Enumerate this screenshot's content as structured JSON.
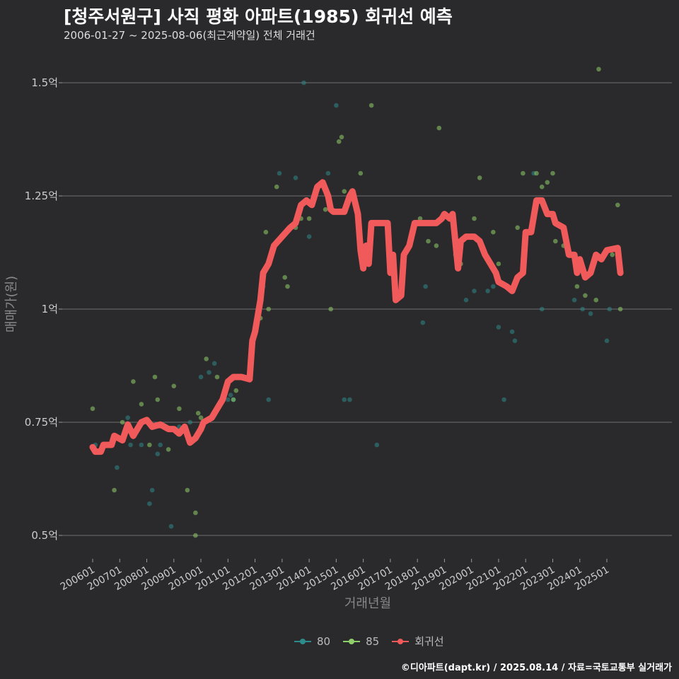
{
  "chart_data": {
    "type": "scatter+line",
    "title": "[청주서원구] 사직 평화 아파트(1985) 회귀선 예측",
    "subtitle": "2006-01-27 ~ 2025-08-06(최근계약일) 전체 거래건",
    "xlabel": "거래년월",
    "ylabel": "매매가(원)",
    "ylim": [
      0.45,
      1.58
    ],
    "y_ticks": [
      {
        "value": 0.5,
        "label": "0.5억"
      },
      {
        "value": 0.75,
        "label": "0.75억"
      },
      {
        "value": 1.0,
        "label": "1억"
      },
      {
        "value": 1.25,
        "label": "1.25억"
      },
      {
        "value": 1.5,
        "label": "1.5억"
      }
    ],
    "x_ticks": [
      "200601",
      "200701",
      "200801",
      "200901",
      "201001",
      "201101",
      "201201",
      "201301",
      "201401",
      "201501",
      "201601",
      "201701",
      "201801",
      "201901",
      "202001",
      "202101",
      "202201",
      "202301",
      "202401",
      "202501"
    ],
    "xlim": [
      2005.75,
      2025.95
    ],
    "legend": [
      "80",
      "85",
      "회귀선"
    ],
    "colors": {
      "s80": "#2e8b8b",
      "s85": "#8fcf6a",
      "regression": "#f05a5a",
      "grid": "#707070",
      "background": "#2a292b"
    },
    "series": [
      {
        "name": "80",
        "points": [
          [
            2006.1,
            0.7
          ],
          [
            2006.9,
            0.65
          ],
          [
            2007.3,
            0.76
          ],
          [
            2007.4,
            0.7
          ],
          [
            2007.8,
            0.7
          ],
          [
            2008.1,
            0.57
          ],
          [
            2008.2,
            0.6
          ],
          [
            2008.4,
            0.68
          ],
          [
            2008.5,
            0.7
          ],
          [
            2008.9,
            0.52
          ],
          [
            2009.2,
            0.74
          ],
          [
            2009.6,
            0.75
          ],
          [
            2010.0,
            0.85
          ],
          [
            2010.3,
            0.86
          ],
          [
            2010.5,
            0.88
          ],
          [
            2011.0,
            0.8
          ],
          [
            2011.1,
            0.81
          ],
          [
            2011.2,
            0.8
          ],
          [
            2012.3,
            1.05
          ],
          [
            2012.5,
            0.8
          ],
          [
            2012.9,
            1.3
          ],
          [
            2013.5,
            1.29
          ],
          [
            2013.8,
            1.5
          ],
          [
            2014.0,
            1.16
          ],
          [
            2014.7,
            1.3
          ],
          [
            2015.0,
            1.45
          ],
          [
            2015.3,
            0.8
          ],
          [
            2015.5,
            0.8
          ],
          [
            2016.5,
            0.7
          ],
          [
            2018.2,
            0.97
          ],
          [
            2018.3,
            1.05
          ],
          [
            2019.4,
            1.12
          ],
          [
            2019.8,
            1.02
          ],
          [
            2020.1,
            1.04
          ],
          [
            2020.6,
            1.04
          ],
          [
            2020.8,
            1.05
          ],
          [
            2021.0,
            0.96
          ],
          [
            2021.2,
            0.8
          ],
          [
            2021.5,
            0.95
          ],
          [
            2021.6,
            0.93
          ],
          [
            2022.3,
            1.3
          ],
          [
            2022.6,
            1.0
          ],
          [
            2023.8,
            1.02
          ],
          [
            2024.1,
            1.0
          ],
          [
            2024.4,
            0.99
          ],
          [
            2025.0,
            0.93
          ],
          [
            2025.1,
            1.0
          ]
        ]
      },
      {
        "name": "85",
        "points": [
          [
            2006.0,
            0.78
          ],
          [
            2006.8,
            0.6
          ],
          [
            2007.1,
            0.75
          ],
          [
            2007.5,
            0.84
          ],
          [
            2007.8,
            0.79
          ],
          [
            2008.1,
            0.7
          ],
          [
            2008.3,
            0.85
          ],
          [
            2008.4,
            0.8
          ],
          [
            2008.8,
            0.69
          ],
          [
            2009.0,
            0.83
          ],
          [
            2009.2,
            0.78
          ],
          [
            2009.5,
            0.6
          ],
          [
            2009.8,
            0.55
          ],
          [
            2009.8,
            0.5
          ],
          [
            2009.9,
            0.77
          ],
          [
            2010.0,
            0.76
          ],
          [
            2010.2,
            0.89
          ],
          [
            2010.6,
            0.85
          ],
          [
            2011.2,
            0.8
          ],
          [
            2011.3,
            0.82
          ],
          [
            2012.2,
            0.98
          ],
          [
            2012.4,
            1.17
          ],
          [
            2012.5,
            1.0
          ],
          [
            2012.8,
            1.27
          ],
          [
            2013.1,
            1.07
          ],
          [
            2013.2,
            1.05
          ],
          [
            2013.5,
            1.18
          ],
          [
            2013.7,
            1.2
          ],
          [
            2014.0,
            1.2
          ],
          [
            2014.6,
            1.22
          ],
          [
            2014.8,
            1.0
          ],
          [
            2015.1,
            1.37
          ],
          [
            2015.2,
            1.38
          ],
          [
            2015.3,
            1.26
          ],
          [
            2015.9,
            1.3
          ],
          [
            2016.3,
            1.45
          ],
          [
            2018.1,
            1.2
          ],
          [
            2018.4,
            1.15
          ],
          [
            2018.7,
            1.14
          ],
          [
            2018.8,
            1.4
          ],
          [
            2019.6,
            1.1
          ],
          [
            2020.1,
            1.2
          ],
          [
            2020.3,
            1.29
          ],
          [
            2020.8,
            1.17
          ],
          [
            2021.0,
            1.1
          ],
          [
            2021.7,
            1.18
          ],
          [
            2021.9,
            1.3
          ],
          [
            2022.4,
            1.3
          ],
          [
            2022.6,
            1.27
          ],
          [
            2022.8,
            1.28
          ],
          [
            2023.0,
            1.3
          ],
          [
            2023.1,
            1.15
          ],
          [
            2023.4,
            1.14
          ],
          [
            2023.9,
            1.05
          ],
          [
            2024.2,
            1.03
          ],
          [
            2024.6,
            1.02
          ],
          [
            2024.7,
            1.53
          ],
          [
            2025.2,
            1.12
          ],
          [
            2025.4,
            1.23
          ],
          [
            2025.5,
            1.0
          ]
        ]
      }
    ],
    "regression": [
      [
        2006.0,
        0.695
      ],
      [
        2006.1,
        0.685
      ],
      [
        2006.3,
        0.685
      ],
      [
        2006.4,
        0.7
      ],
      [
        2006.7,
        0.7
      ],
      [
        2006.8,
        0.72
      ],
      [
        2007.1,
        0.71
      ],
      [
        2007.3,
        0.745
      ],
      [
        2007.5,
        0.72
      ],
      [
        2007.8,
        0.75
      ],
      [
        2008.0,
        0.755
      ],
      [
        2008.2,
        0.74
      ],
      [
        2008.5,
        0.745
      ],
      [
        2008.8,
        0.735
      ],
      [
        2009.0,
        0.735
      ],
      [
        2009.2,
        0.725
      ],
      [
        2009.4,
        0.74
      ],
      [
        2009.6,
        0.705
      ],
      [
        2009.8,
        0.715
      ],
      [
        2010.0,
        0.735
      ],
      [
        2010.1,
        0.75
      ],
      [
        2010.4,
        0.76
      ],
      [
        2010.6,
        0.78
      ],
      [
        2010.8,
        0.8
      ],
      [
        2011.0,
        0.84
      ],
      [
        2011.2,
        0.85
      ],
      [
        2011.5,
        0.85
      ],
      [
        2011.8,
        0.845
      ],
      [
        2011.9,
        0.93
      ],
      [
        2012.0,
        0.95
      ],
      [
        2012.2,
        1.02
      ],
      [
        2012.3,
        1.08
      ],
      [
        2012.5,
        1.1
      ],
      [
        2012.7,
        1.14
      ],
      [
        2013.0,
        1.16
      ],
      [
        2013.3,
        1.18
      ],
      [
        2013.5,
        1.19
      ],
      [
        2013.7,
        1.23
      ],
      [
        2013.9,
        1.24
      ],
      [
        2014.1,
        1.23
      ],
      [
        2014.3,
        1.27
      ],
      [
        2014.5,
        1.28
      ],
      [
        2014.7,
        1.25
      ],
      [
        2014.8,
        1.22
      ],
      [
        2014.9,
        1.215
      ],
      [
        2015.1,
        1.215
      ],
      [
        2015.3,
        1.215
      ],
      [
        2015.5,
        1.25
      ],
      [
        2015.6,
        1.26
      ],
      [
        2015.8,
        1.21
      ],
      [
        2015.9,
        1.13
      ],
      [
        2016.0,
        1.09
      ],
      [
        2016.1,
        1.14
      ],
      [
        2016.2,
        1.1
      ],
      [
        2016.3,
        1.19
      ],
      [
        2016.5,
        1.19
      ],
      [
        2016.9,
        1.19
      ],
      [
        2017.0,
        1.08
      ],
      [
        2017.1,
        1.12
      ],
      [
        2017.2,
        1.02
      ],
      [
        2017.4,
        1.03
      ],
      [
        2017.5,
        1.12
      ],
      [
        2017.7,
        1.14
      ],
      [
        2017.9,
        1.19
      ],
      [
        2018.1,
        1.19
      ],
      [
        2018.4,
        1.19
      ],
      [
        2018.7,
        1.19
      ],
      [
        2018.9,
        1.2
      ],
      [
        2019.0,
        1.21
      ],
      [
        2019.2,
        1.2
      ],
      [
        2019.3,
        1.21
      ],
      [
        2019.5,
        1.09
      ],
      [
        2019.6,
        1.15
      ],
      [
        2019.8,
        1.16
      ],
      [
        2020.1,
        1.16
      ],
      [
        2020.3,
        1.15
      ],
      [
        2020.5,
        1.12
      ],
      [
        2020.7,
        1.1
      ],
      [
        2020.9,
        1.08
      ],
      [
        2021.0,
        1.06
      ],
      [
        2021.3,
        1.05
      ],
      [
        2021.5,
        1.04
      ],
      [
        2021.7,
        1.07
      ],
      [
        2021.9,
        1.08
      ],
      [
        2022.0,
        1.17
      ],
      [
        2022.2,
        1.17
      ],
      [
        2022.4,
        1.24
      ],
      [
        2022.6,
        1.24
      ],
      [
        2022.8,
        1.21
      ],
      [
        2023.0,
        1.21
      ],
      [
        2023.1,
        1.19
      ],
      [
        2023.4,
        1.18
      ],
      [
        2023.6,
        1.12
      ],
      [
        2023.8,
        1.12
      ],
      [
        2023.9,
        1.08
      ],
      [
        2024.0,
        1.11
      ],
      [
        2024.2,
        1.07
      ],
      [
        2024.4,
        1.08
      ],
      [
        2024.6,
        1.12
      ],
      [
        2024.8,
        1.11
      ],
      [
        2025.0,
        1.13
      ],
      [
        2025.4,
        1.135
      ],
      [
        2025.5,
        1.08
      ]
    ]
  },
  "legend_labels": {
    "s80": "80",
    "s85": "85",
    "regression": "회귀선"
  },
  "caption": "©디아파트(dapt.kr) / 2025.08.14 / 자료=국토교통부 실거래가"
}
